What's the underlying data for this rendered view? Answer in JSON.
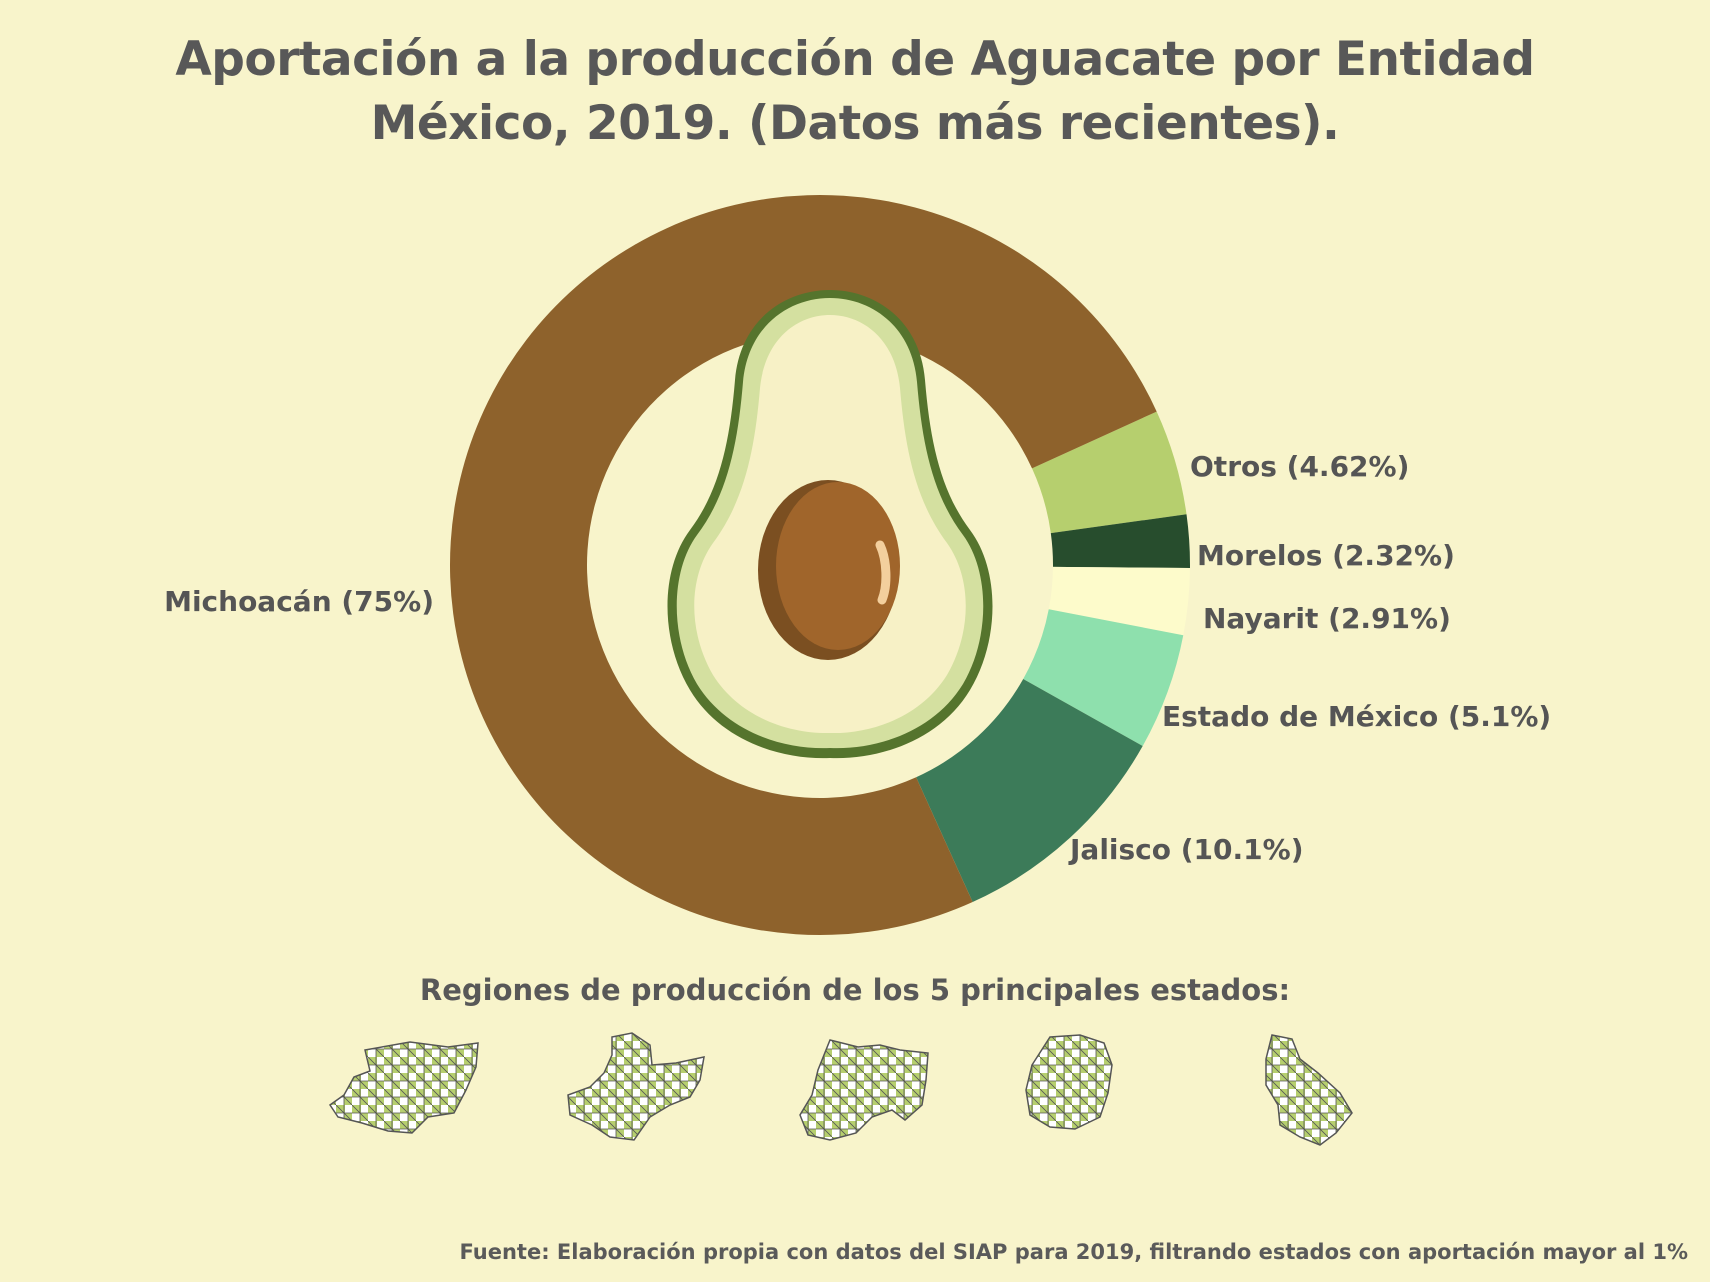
{
  "title_line1": "Aportación a la producción de Aguacate por Entidad",
  "title_line2": "México, 2019. (Datos más recientes).",
  "chart_data": {
    "type": "pie",
    "style": "donut",
    "title": "Aportación a la producción de Aguacate por Entidad México, 2019. (Datos más recientes).",
    "slices": [
      {
        "name": "Otros",
        "value": 4.62,
        "label": "Otros (4.62%)",
        "color": "#b6cf6e"
      },
      {
        "name": "Morelos",
        "value": 2.32,
        "label": "Morelos (2.32%)",
        "color": "#274d2d"
      },
      {
        "name": "Nayarit",
        "value": 2.91,
        "label": "Nayarit (2.91%)",
        "color": "#fdfbcb"
      },
      {
        "name": "Estado de México",
        "value": 5.1,
        "label": "Estado de México (5.1%)",
        "color": "#8ee0ad"
      },
      {
        "name": "Jalisco",
        "value": 10.1,
        "label": "Jalisco (10.1%)",
        "color": "#3c7b59"
      },
      {
        "name": "Michoacán",
        "value": 75,
        "label": "Michoacán (75%)",
        "color": "#8e622c"
      }
    ]
  },
  "center_icon": "avocado-icon",
  "regions_title": "Regiones de producción de los 5 principales estados:",
  "region_maps": [
    "michoacan-map-icon",
    "jalisco-map-icon",
    "estado-de-mexico-map-icon",
    "nayarit-map-icon",
    "morelos-map-icon"
  ],
  "source": "Fuente: Elaboración propia con datos del SIAP para 2019, filtrando estados con aportación mayor al 1%",
  "colors": {
    "background": "#f8f4cb",
    "avocado_skin": "#55742d",
    "avocado_flesh": "#f7f1c6",
    "avocado_pit": "#a0652b",
    "region_fill": "#b6cf6e"
  }
}
